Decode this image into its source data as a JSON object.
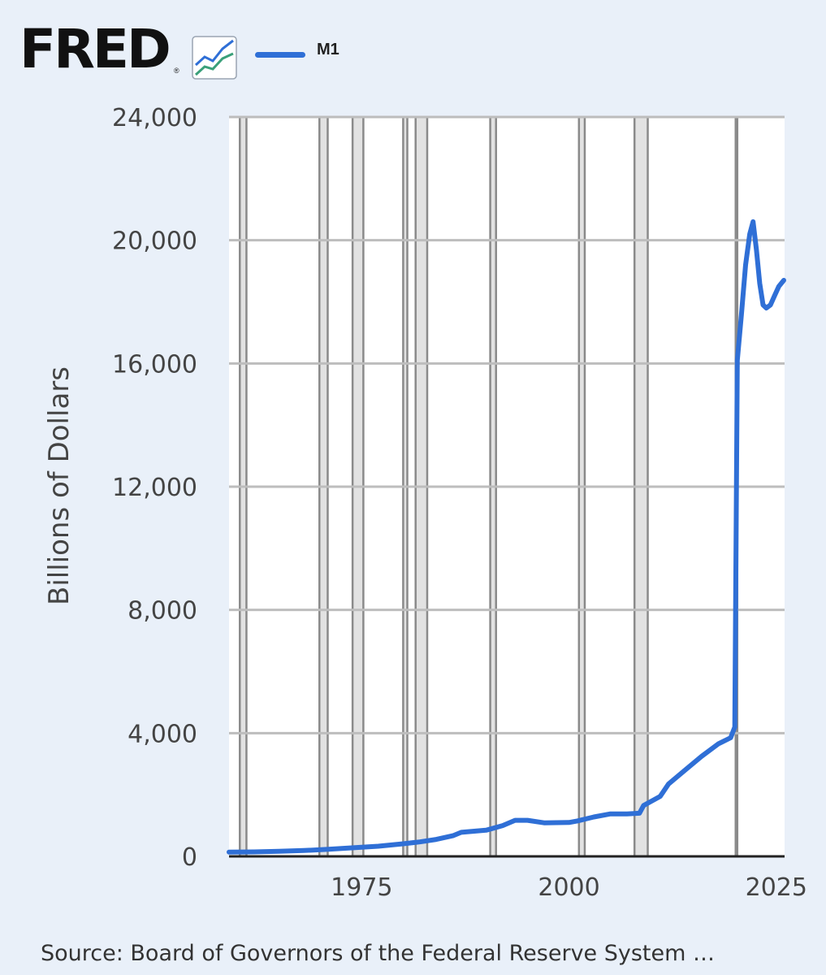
{
  "header": {
    "logo_text": "FRED",
    "logo_reg": "®",
    "logo_icon": "fred-line-chart-icon",
    "legend": [
      {
        "label": "M1",
        "color": "#2f6fd6"
      }
    ]
  },
  "source": "Source: Board of Governors of the Federal Reserve System …",
  "colors": {
    "series": "#2f6fd6",
    "background": "#e9f0f9",
    "plot_background": "#ffffff",
    "recession_shading": "#e2e2e2",
    "recession_edge": "#8a8a8a",
    "gridline": "#bdbdbd",
    "axis": "#222222"
  },
  "chart_data": {
    "type": "line",
    "title": "",
    "xlabel": "",
    "ylabel": "Billions of Dollars",
    "xlim": [
      1959,
      2026
    ],
    "ylim": [
      0,
      24000
    ],
    "x_ticks": [
      1975,
      2000,
      2025
    ],
    "y_ticks": [
      0,
      4000,
      8000,
      12000,
      16000,
      20000,
      24000
    ],
    "y_tick_labels": [
      "0",
      "4,000",
      "8,000",
      "12,000",
      "16,000",
      "20,000",
      "24,000"
    ],
    "grid": true,
    "legend_position": "top-left",
    "recessions": [
      [
        1960.3,
        1961.1
      ],
      [
        1969.9,
        1970.9
      ],
      [
        1973.9,
        1975.2
      ],
      [
        1980.0,
        1980.5
      ],
      [
        1981.5,
        1982.9
      ],
      [
        1990.5,
        1991.2
      ],
      [
        2001.2,
        2001.9
      ],
      [
        2007.9,
        2009.5
      ],
      [
        2020.1,
        2020.3
      ]
    ],
    "series": [
      {
        "name": "M1",
        "x": [
          1959,
          1962,
          1965,
          1968,
          1971,
          1974,
          1977,
          1980,
          1982,
          1984,
          1986,
          1987,
          1990,
          1992,
          1993.5,
          1995,
          1997,
          2000,
          2001,
          2003,
          2005,
          2007,
          2008.5,
          2009,
          2011,
          2012,
          2014,
          2016,
          2018,
          2019.5,
          2020.0,
          2020.3,
          2020.8,
          2021.3,
          2021.8,
          2022.2,
          2022.6,
          2023.0,
          2023.4,
          2023.8,
          2024.3,
          2024.8,
          2025.3,
          2025.9
        ],
        "y": [
          140,
          145,
          165,
          190,
          230,
          280,
          330,
          410,
          470,
          550,
          670,
          780,
          850,
          1000,
          1170,
          1170,
          1090,
          1100,
          1150,
          1280,
          1380,
          1380,
          1400,
          1650,
          1950,
          2350,
          2800,
          3250,
          3650,
          3850,
          4200,
          16100,
          17600,
          19200,
          20200,
          20600,
          19700,
          18600,
          17900,
          17800,
          17900,
          18200,
          18500,
          18700
        ]
      }
    ]
  }
}
